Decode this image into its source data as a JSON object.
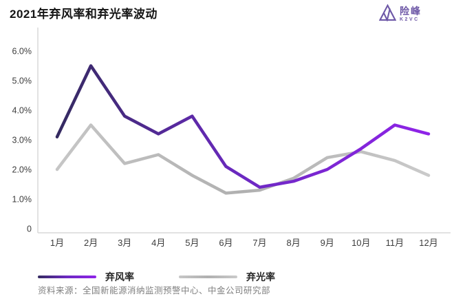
{
  "header": {
    "title": "2021年弃风率和弃光率波动",
    "logo": {
      "name_cn": "险峰",
      "name_en": "K2VC",
      "color": "#6e58a7"
    }
  },
  "chart_data": {
    "type": "line",
    "title": "2021年弃风率和弃光率波动",
    "categories": [
      "1月",
      "2月",
      "3月",
      "4月",
      "5月",
      "6月",
      "7月",
      "8月",
      "9月",
      "10月",
      "11月",
      "12月"
    ],
    "series": [
      {
        "name": "弃风率",
        "values": [
          3.1,
          5.5,
          3.8,
          3.2,
          3.8,
          2.1,
          1.4,
          1.6,
          2.0,
          2.7,
          3.5,
          3.2
        ],
        "gradient": [
          "#342a60",
          "#6c29c2",
          "#8f23e8"
        ]
      },
      {
        "name": "弃光率",
        "values": [
          2.0,
          3.5,
          2.2,
          2.5,
          1.8,
          1.2,
          1.3,
          1.7,
          2.4,
          2.6,
          2.3,
          1.8
        ],
        "gradient": [
          "#c6c6c6",
          "#b0b0b0",
          "#cacaca"
        ]
      }
    ],
    "y_ticks": [
      {
        "label": "6.0%",
        "value": 6
      },
      {
        "label": "5.0%",
        "value": 5
      },
      {
        "label": "4.0%",
        "value": 4
      },
      {
        "label": "3.0%",
        "value": 3
      },
      {
        "label": "2.0%",
        "value": 2
      },
      {
        "label": "1.0%",
        "value": 1
      },
      {
        "label": "0",
        "value": 0
      }
    ],
    "ylim": [
      0,
      6.8
    ],
    "xlabel": "",
    "ylabel": "",
    "grid": false,
    "legend_position": "bottom",
    "axis_color": "#d9d9d9",
    "tick_color": "#3c3c3c"
  },
  "footer": {
    "source": "资料来源：全国新能源消纳监测预警中心、中金公司研究部"
  }
}
